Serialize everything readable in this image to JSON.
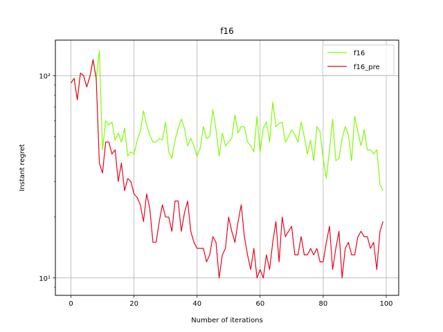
{
  "chart_data": {
    "type": "line",
    "title": "f16",
    "xlabel": "Number of iterations",
    "ylabel": "Instant regret",
    "xlim": [
      -4.95,
      103.95
    ],
    "ylim": [
      8.2,
      150
    ],
    "yscale": "log",
    "grid": true,
    "legend_position": "top-right",
    "x_ticks": [
      0,
      20,
      40,
      60,
      80,
      100
    ],
    "x_tick_labels": [
      "0",
      "20",
      "40",
      "60",
      "80",
      "100"
    ],
    "y_ticks": [
      10,
      100
    ],
    "y_tick_labels": [
      "10¹",
      "10²"
    ],
    "series": [
      {
        "name": "f16",
        "color": "#7cfc00",
        "values": [
          92,
          97,
          76,
          103,
          100,
          88,
          99,
          120,
          97,
          133,
          43,
          60,
          57,
          59,
          48,
          52,
          47,
          55,
          40,
          42,
          41,
          48,
          53,
          67,
          57,
          51,
          47,
          47,
          49,
          48,
          59,
          42,
          39,
          48,
          55,
          61,
          55,
          45,
          49,
          45,
          40,
          44,
          56,
          49,
          50,
          68,
          54,
          40,
          52,
          45,
          47,
          49,
          64,
          52,
          56,
          56,
          47,
          45,
          42,
          63,
          42,
          55,
          59,
          47,
          74,
          56,
          58,
          59,
          47,
          50,
          54,
          51,
          47,
          59,
          50,
          41,
          48,
          38,
          56,
          53,
          39,
          31,
          43,
          61,
          38,
          39,
          49,
          56,
          51,
          38,
          63,
          53,
          45,
          54,
          43,
          43,
          41,
          43,
          29,
          27
        ]
      },
      {
        "name": "f16_pre",
        "color": "#e8001a",
        "values": [
          92,
          97,
          76,
          103,
          100,
          88,
          99,
          120,
          97,
          37,
          33,
          47,
          47,
          41,
          43,
          30,
          37,
          27,
          31,
          30,
          26,
          25,
          23,
          19,
          26,
          22,
          15,
          15,
          19,
          23,
          20,
          20,
          17,
          24,
          24,
          17,
          21,
          24,
          17,
          15,
          14,
          14,
          14,
          12,
          13,
          16,
          15,
          10,
          13,
          14,
          20,
          17,
          15,
          19,
          23,
          16,
          13,
          11,
          14,
          10,
          11,
          10,
          13,
          11,
          15,
          19,
          12,
          20,
          16,
          17,
          18,
          13,
          13,
          16,
          13,
          13,
          14,
          13,
          14,
          12,
          12,
          15,
          18,
          11,
          14,
          17,
          10,
          14,
          15,
          13,
          13,
          16,
          17,
          16,
          16,
          14,
          15,
          11,
          17,
          19
        ]
      }
    ]
  }
}
